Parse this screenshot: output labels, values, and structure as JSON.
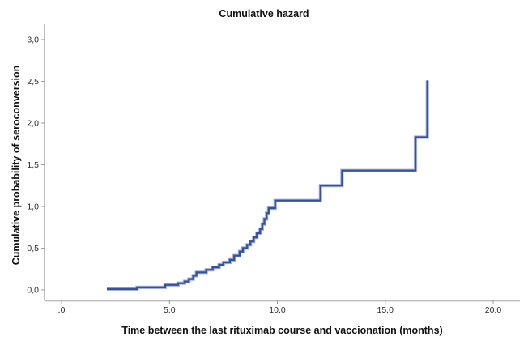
{
  "chart_data": {
    "type": "line",
    "subtype": "step-cumulative-hazard",
    "title": "Cumulative hazard",
    "xlabel": "Time between the last rituximab course and vaccionation (months)",
    "ylabel": "Cumulative probability of seroconversion",
    "grid": false,
    "legend": "none",
    "xlim": [
      -0.79,
      21.24
    ],
    "ylim": [
      -0.117,
      3.184
    ],
    "x_ticks": [
      {
        "value": 0,
        "label": ",0"
      },
      {
        "value": 5,
        "label": "5,0"
      },
      {
        "value": 10,
        "label": "10,0"
      },
      {
        "value": 15,
        "label": "15,0"
      },
      {
        "value": 20,
        "label": "20,0"
      }
    ],
    "y_ticks": [
      {
        "value": 0.0,
        "label": "0,0"
      },
      {
        "value": 0.5,
        "label": "0,5"
      },
      {
        "value": 1.0,
        "label": "1,0"
      },
      {
        "value": 1.5,
        "label": "1,5"
      },
      {
        "value": 2.0,
        "label": "2,0"
      },
      {
        "value": 2.5,
        "label": "2,5"
      },
      {
        "value": 3.0,
        "label": "3,0"
      }
    ],
    "axis_color": "#9b9b9b",
    "series": [
      {
        "name": "Cumulative hazard",
        "color": "#34519C",
        "halo_color": "#A3B1DC",
        "steps": [
          [
            2.1,
            0.01
          ],
          [
            3.5,
            0.03
          ],
          [
            4.8,
            0.06
          ],
          [
            5.4,
            0.08
          ],
          [
            5.7,
            0.1
          ],
          [
            5.9,
            0.13
          ],
          [
            6.1,
            0.17
          ],
          [
            6.25,
            0.21
          ],
          [
            6.7,
            0.24
          ],
          [
            7.0,
            0.27
          ],
          [
            7.3,
            0.3
          ],
          [
            7.5,
            0.33
          ],
          [
            7.8,
            0.36
          ],
          [
            8.0,
            0.41
          ],
          [
            8.25,
            0.46
          ],
          [
            8.4,
            0.5
          ],
          [
            8.6,
            0.54
          ],
          [
            8.75,
            0.58
          ],
          [
            8.9,
            0.63
          ],
          [
            9.05,
            0.68
          ],
          [
            9.2,
            0.73
          ],
          [
            9.3,
            0.79
          ],
          [
            9.4,
            0.85
          ],
          [
            9.5,
            0.92
          ],
          [
            9.6,
            0.98
          ],
          [
            9.9,
            1.07
          ],
          [
            12.0,
            1.25
          ],
          [
            13.0,
            1.43
          ],
          [
            16.4,
            1.83
          ],
          [
            16.95,
            2.51
          ]
        ]
      }
    ]
  }
}
